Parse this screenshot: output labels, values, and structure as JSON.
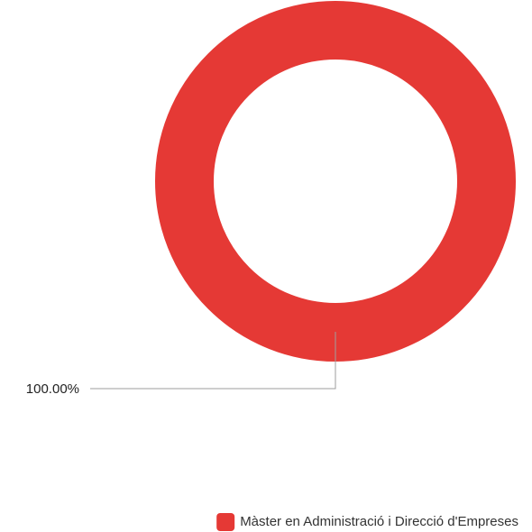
{
  "chart_data": {
    "type": "pie",
    "variant": "donut",
    "slices": [
      {
        "label": "Màster en Administració i Direcció d'Empreses",
        "value": 100.0,
        "display": "100.00%",
        "color": "#e53935"
      }
    ],
    "legend": {
      "placement": "bottom-right"
    }
  }
}
